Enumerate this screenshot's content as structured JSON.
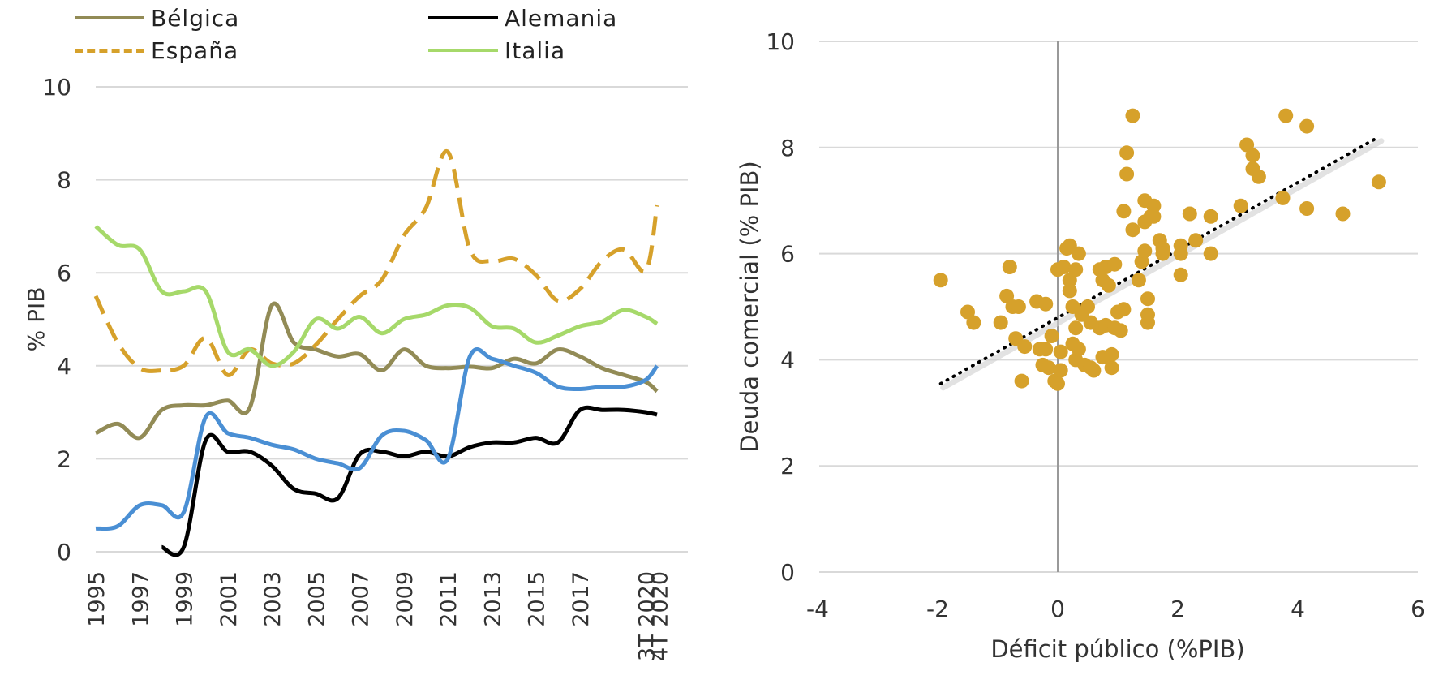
{
  "chart_data": [
    {
      "type": "line",
      "title": "",
      "xlabel": "",
      "ylabel": "% PIB",
      "ylim": [
        0,
        10
      ],
      "yticks": [
        0,
        2,
        4,
        6,
        8,
        10
      ],
      "xtick_labels": [
        "1995",
        "1997",
        "1999",
        "2001",
        "2003",
        "2005",
        "2007",
        "2009",
        "2011",
        "2013",
        "2015",
        "2017",
        "3T 2020",
        "4T 2020"
      ],
      "grid": true,
      "legend": "top",
      "series": [
        {
          "name": "Bélgica",
          "color": "#928b56",
          "style": "solid",
          "points": [
            [
              1995,
              2.55
            ],
            [
              1996,
              2.75
            ],
            [
              1997,
              2.45
            ],
            [
              1998,
              3.05
            ],
            [
              1999,
              3.15
            ],
            [
              2000,
              3.15
            ],
            [
              2001,
              3.25
            ],
            [
              2002,
              3.1
            ],
            [
              2003,
              5.3
            ],
            [
              2004,
              4.5
            ],
            [
              2005,
              4.35
            ],
            [
              2006,
              4.2
            ],
            [
              2007,
              4.25
            ],
            [
              2008,
              3.9
            ],
            [
              2009,
              4.35
            ],
            [
              2010,
              4.0
            ],
            [
              2011,
              3.95
            ],
            [
              2012,
              3.98
            ],
            [
              2013,
              3.95
            ],
            [
              2014,
              4.15
            ],
            [
              2015,
              4.05
            ],
            [
              2016,
              4.35
            ],
            [
              2017,
              4.2
            ],
            [
              2018,
              3.95
            ],
            [
              2019,
              3.8
            ],
            [
              2020,
              3.65
            ],
            [
              2020.5,
              3.45
            ]
          ]
        },
        {
          "name": "Alemania",
          "color": "#000000",
          "style": "solid",
          "points": [
            [
              1998,
              0.1
            ],
            [
              1999,
              0.1
            ],
            [
              2000,
              2.4
            ],
            [
              2001,
              2.15
            ],
            [
              2002,
              2.15
            ],
            [
              2003,
              1.85
            ],
            [
              2004,
              1.35
            ],
            [
              2005,
              1.25
            ],
            [
              2006,
              1.15
            ],
            [
              2007,
              2.1
            ],
            [
              2008,
              2.15
            ],
            [
              2009,
              2.05
            ],
            [
              2010,
              2.15
            ],
            [
              2011,
              2.05
            ],
            [
              2012,
              2.25
            ],
            [
              2013,
              2.35
            ],
            [
              2014,
              2.35
            ],
            [
              2015,
              2.45
            ],
            [
              2016,
              2.35
            ],
            [
              2017,
              3.05
            ],
            [
              2018,
              3.05
            ],
            [
              2019,
              3.05
            ],
            [
              2020,
              3.0
            ],
            [
              2020.5,
              2.95
            ]
          ]
        },
        {
          "name": "España",
          "color": "#d6a12b",
          "style": "dashed",
          "points": [
            [
              1995,
              5.5
            ],
            [
              1996,
              4.5
            ],
            [
              1997,
              3.95
            ],
            [
              1998,
              3.9
            ],
            [
              1999,
              4.0
            ],
            [
              2000,
              4.6
            ],
            [
              2001,
              3.8
            ],
            [
              2002,
              4.35
            ],
            [
              2003,
              4.05
            ],
            [
              2004,
              4.05
            ],
            [
              2005,
              4.45
            ],
            [
              2006,
              5.0
            ],
            [
              2007,
              5.5
            ],
            [
              2008,
              5.85
            ],
            [
              2009,
              6.8
            ],
            [
              2010,
              7.4
            ],
            [
              2011,
              8.6
            ],
            [
              2012,
              6.5
            ],
            [
              2013,
              6.25
            ],
            [
              2014,
              6.3
            ],
            [
              2015,
              5.95
            ],
            [
              2016,
              5.4
            ],
            [
              2017,
              5.65
            ],
            [
              2018,
              6.25
            ],
            [
              2019,
              6.5
            ],
            [
              2020,
              6.05
            ],
            [
              2020.5,
              7.45
            ]
          ]
        },
        {
          "name": "Italia",
          "color": "#a6d96a",
          "style": "solid",
          "points": [
            [
              1995,
              7.0
            ],
            [
              1996,
              6.6
            ],
            [
              1997,
              6.5
            ],
            [
              1998,
              5.6
            ],
            [
              1999,
              5.6
            ],
            [
              2000,
              5.6
            ],
            [
              2001,
              4.3
            ],
            [
              2002,
              4.35
            ],
            [
              2003,
              4.0
            ],
            [
              2004,
              4.3
            ],
            [
              2005,
              5.0
            ],
            [
              2006,
              4.8
            ],
            [
              2007,
              5.05
            ],
            [
              2008,
              4.7
            ],
            [
              2009,
              5.0
            ],
            [
              2010,
              5.1
            ],
            [
              2011,
              5.3
            ],
            [
              2012,
              5.25
            ],
            [
              2013,
              4.85
            ],
            [
              2014,
              4.8
            ],
            [
              2015,
              4.5
            ],
            [
              2016,
              4.65
            ],
            [
              2017,
              4.85
            ],
            [
              2018,
              4.95
            ],
            [
              2019,
              5.2
            ],
            [
              2020,
              5.05
            ],
            [
              2020.5,
              4.9
            ]
          ]
        },
        {
          "name": "",
          "color": "#4a8fd4",
          "style": "solid",
          "points": [
            [
              1995,
              0.5
            ],
            [
              1996,
              0.55
            ],
            [
              1997,
              1.0
            ],
            [
              1998,
              1.0
            ],
            [
              1999,
              0.85
            ],
            [
              2000,
              2.9
            ],
            [
              2001,
              2.55
            ],
            [
              2002,
              2.45
            ],
            [
              2003,
              2.3
            ],
            [
              2004,
              2.2
            ],
            [
              2005,
              2.0
            ],
            [
              2006,
              1.9
            ],
            [
              2007,
              1.8
            ],
            [
              2008,
              2.5
            ],
            [
              2009,
              2.6
            ],
            [
              2010,
              2.4
            ],
            [
              2011,
              2.0
            ],
            [
              2012,
              4.2
            ],
            [
              2013,
              4.15
            ],
            [
              2014,
              4.0
            ],
            [
              2015,
              3.85
            ],
            [
              2016,
              3.55
            ],
            [
              2017,
              3.5
            ],
            [
              2018,
              3.55
            ],
            [
              2019,
              3.55
            ],
            [
              2020,
              3.7
            ],
            [
              2020.5,
              4.0
            ]
          ]
        }
      ]
    },
    {
      "type": "scatter",
      "title": "",
      "xlabel": "Déficit público (%PIB)",
      "ylabel": "Deuda comercial  (% PIB)",
      "xlim": [
        -4,
        6
      ],
      "ylim": [
        0,
        10
      ],
      "xticks": [
        -4,
        -2,
        0,
        2,
        4,
        6
      ],
      "yticks": [
        0,
        2,
        4,
        6,
        8,
        10
      ],
      "grid": true,
      "marker_color": "#d6a12b",
      "trendline": {
        "style": "dotted",
        "color": "#000000",
        "from": [
          -1.95,
          3.55
        ],
        "to": [
          5.35,
          8.2
        ]
      },
      "points": [
        [
          -1.95,
          5.5
        ],
        [
          -1.5,
          4.9
        ],
        [
          -1.4,
          4.7
        ],
        [
          -0.95,
          4.7
        ],
        [
          -0.85,
          5.2
        ],
        [
          -0.8,
          5.75
        ],
        [
          -0.75,
          5.0
        ],
        [
          -0.7,
          4.4
        ],
        [
          -0.65,
          5.0
        ],
        [
          -0.6,
          3.6
        ],
        [
          -0.55,
          4.25
        ],
        [
          -0.35,
          5.1
        ],
        [
          -0.3,
          4.2
        ],
        [
          -0.25,
          3.9
        ],
        [
          -0.2,
          4.2
        ],
        [
          -0.2,
          5.05
        ],
        [
          -0.15,
          3.85
        ],
        [
          -0.1,
          4.45
        ],
        [
          -0.05,
          3.6
        ],
        [
          0.0,
          3.55
        ],
        [
          0.05,
          3.8
        ],
        [
          0.05,
          4.15
        ],
        [
          0.0,
          5.7
        ],
        [
          0.1,
          5.75
        ],
        [
          0.15,
          6.1
        ],
        [
          0.2,
          6.15
        ],
        [
          0.2,
          5.5
        ],
        [
          0.2,
          5.3
        ],
        [
          0.25,
          5.0
        ],
        [
          0.25,
          4.3
        ],
        [
          0.3,
          4.6
        ],
        [
          0.3,
          4.0
        ],
        [
          0.35,
          4.2
        ],
        [
          0.35,
          6.0
        ],
        [
          0.3,
          5.7
        ],
        [
          0.4,
          4.85
        ],
        [
          0.45,
          3.9
        ],
        [
          0.5,
          5.0
        ],
        [
          0.55,
          3.85
        ],
        [
          0.55,
          4.7
        ],
        [
          0.6,
          3.8
        ],
        [
          0.7,
          4.6
        ],
        [
          0.7,
          5.7
        ],
        [
          0.75,
          5.5
        ],
        [
          0.75,
          4.05
        ],
        [
          0.8,
          5.75
        ],
        [
          0.8,
          4.65
        ],
        [
          0.85,
          5.4
        ],
        [
          0.9,
          3.85
        ],
        [
          0.9,
          4.1
        ],
        [
          0.95,
          5.8
        ],
        [
          0.95,
          4.6
        ],
        [
          1.0,
          4.9
        ],
        [
          1.05,
          4.55
        ],
        [
          1.1,
          4.95
        ],
        [
          1.1,
          6.8
        ],
        [
          1.15,
          7.5
        ],
        [
          1.15,
          7.9
        ],
        [
          1.25,
          8.6
        ],
        [
          1.25,
          6.45
        ],
        [
          1.35,
          5.5
        ],
        [
          1.4,
          5.85
        ],
        [
          1.45,
          6.05
        ],
        [
          1.45,
          6.6
        ],
        [
          1.45,
          7.0
        ],
        [
          1.5,
          4.7
        ],
        [
          1.5,
          5.15
        ],
        [
          1.5,
          4.85
        ],
        [
          1.55,
          6.7
        ],
        [
          1.6,
          6.9
        ],
        [
          1.6,
          6.7
        ],
        [
          1.7,
          6.25
        ],
        [
          1.75,
          6.1
        ],
        [
          1.75,
          6.0
        ],
        [
          2.05,
          6.15
        ],
        [
          2.05,
          6.0
        ],
        [
          2.05,
          5.6
        ],
        [
          2.2,
          6.75
        ],
        [
          2.3,
          6.25
        ],
        [
          2.55,
          6.0
        ],
        [
          2.55,
          6.7
        ],
        [
          3.05,
          6.9
        ],
        [
          3.15,
          8.05
        ],
        [
          3.25,
          7.85
        ],
        [
          3.25,
          7.6
        ],
        [
          3.35,
          7.45
        ],
        [
          3.75,
          7.05
        ],
        [
          3.8,
          8.6
        ],
        [
          4.15,
          6.85
        ],
        [
          4.15,
          8.4
        ],
        [
          4.75,
          6.75
        ],
        [
          5.35,
          7.35
        ]
      ]
    }
  ]
}
